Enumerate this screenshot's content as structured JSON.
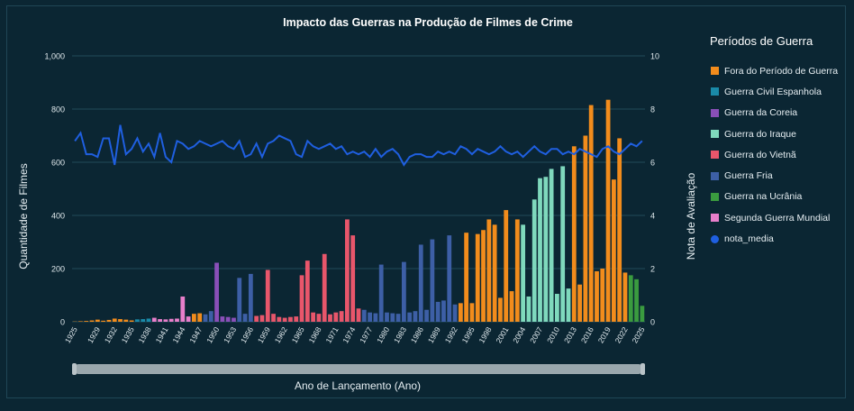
{
  "chart_data": {
    "type": "bar",
    "title": "Impacto das Guerras na Produção de Filmes de Crime",
    "xlabel": "Ano de Lançamento (Ano)",
    "ylabel": "Quantidade de Filmes",
    "y2label": "Nota de Avaliação",
    "ylim": [
      0,
      1000
    ],
    "y2lim": [
      0,
      10
    ],
    "yticks": [
      "0",
      "200",
      "400",
      "600",
      "800",
      "1,000"
    ],
    "y2ticks": [
      "0",
      "2",
      "4",
      "6",
      "8",
      "10"
    ],
    "xticks": [
      "1925",
      "1929",
      "1932",
      "1935",
      "1938",
      "1941",
      "1944",
      "1947",
      "1950",
      "1953",
      "1956",
      "1959",
      "1962",
      "1965",
      "1968",
      "1971",
      "1974",
      "1977",
      "1980",
      "1983",
      "1986",
      "1989",
      "1992",
      "1995",
      "1998",
      "2001",
      "2004",
      "2007",
      "2010",
      "2013",
      "2016",
      "2019",
      "2022",
      "2025"
    ],
    "grid": true,
    "legend_title": "Períodos de Guerra",
    "legend_position": "right",
    "categories": [
      "Fora do Período de Guerra",
      "Guerra Civil Espanhola",
      "Guerra da Coreia",
      "Guerra do Iraque",
      "Guerra do Vietnã",
      "Guerra Fria",
      "Guerra na Ucrânia",
      "Segunda Guerra Mundial"
    ],
    "colors": {
      "Fora do Período de Guerra": "#f28c1c",
      "Guerra Civil Espanhola": "#1a8aa8",
      "Guerra da Coreia": "#8a4fb8",
      "Guerra do Iraque": "#7fd9bd",
      "Guerra do Vietnã": "#e8566b",
      "Guerra Fria": "#3d5fa6",
      "Guerra na Ucrânia": "#3a9b3f",
      "Segunda Guerra Mundial": "#e87fcb",
      "nota_media": "#1f5fe0"
    },
    "line_series_name": "nota_media",
    "x": [
      1925,
      1926,
      1927,
      1928,
      1929,
      1930,
      1931,
      1932,
      1933,
      1934,
      1935,
      1936,
      1937,
      1938,
      1939,
      1940,
      1941,
      1942,
      1943,
      1944,
      1945,
      1946,
      1947,
      1948,
      1949,
      1950,
      1951,
      1952,
      1953,
      1954,
      1955,
      1956,
      1957,
      1958,
      1959,
      1960,
      1961,
      1962,
      1963,
      1964,
      1965,
      1966,
      1967,
      1968,
      1969,
      1970,
      1971,
      1972,
      1973,
      1974,
      1975,
      1976,
      1977,
      1978,
      1979,
      1980,
      1981,
      1982,
      1983,
      1984,
      1985,
      1986,
      1987,
      1988,
      1989,
      1990,
      1991,
      1992,
      1993,
      1994,
      1995,
      1996,
      1997,
      1998,
      1999,
      2000,
      2001,
      2002,
      2003,
      2004,
      2005,
      2006,
      2007,
      2008,
      2009,
      2010,
      2011,
      2012,
      2013,
      2014,
      2015,
      2016,
      2017,
      2018,
      2019,
      2020,
      2021,
      2022,
      2023,
      2024,
      2025
    ],
    "period": [
      "Fora do Período de Guerra",
      "Fora do Período de Guerra",
      "Fora do Período de Guerra",
      "Fora do Período de Guerra",
      "Fora do Período de Guerra",
      "Fora do Período de Guerra",
      "Fora do Período de Guerra",
      "Fora do Período de Guerra",
      "Fora do Período de Guerra",
      "Fora do Período de Guerra",
      "Fora do Período de Guerra",
      "Guerra Civil Espanhola",
      "Guerra Civil Espanhola",
      "Guerra Civil Espanhola",
      "Segunda Guerra Mundial",
      "Segunda Guerra Mundial",
      "Segunda Guerra Mundial",
      "Segunda Guerra Mundial",
      "Segunda Guerra Mundial",
      "Segunda Guerra Mundial",
      "Segunda Guerra Mundial",
      "Fora do Período de Guerra",
      "Fora do Período de Guerra",
      "Guerra Fria",
      "Guerra Fria",
      "Guerra da Coreia",
      "Guerra da Coreia",
      "Guerra da Coreia",
      "Guerra da Coreia",
      "Guerra Fria",
      "Guerra Fria",
      "Guerra Fria",
      "Guerra do Vietnã",
      "Guerra do Vietnã",
      "Guerra do Vietnã",
      "Guerra do Vietnã",
      "Guerra do Vietnã",
      "Guerra do Vietnã",
      "Guerra do Vietnã",
      "Guerra do Vietnã",
      "Guerra do Vietnã",
      "Guerra do Vietnã",
      "Guerra do Vietnã",
      "Guerra do Vietnã",
      "Guerra do Vietnã",
      "Guerra do Vietnã",
      "Guerra do Vietnã",
      "Guerra do Vietnã",
      "Guerra do Vietnã",
      "Guerra do Vietnã",
      "Guerra do Vietnã",
      "Guerra Fria",
      "Guerra Fria",
      "Guerra Fria",
      "Guerra Fria",
      "Guerra Fria",
      "Guerra Fria",
      "Guerra Fria",
      "Guerra Fria",
      "Guerra Fria",
      "Guerra Fria",
      "Guerra Fria",
      "Guerra Fria",
      "Guerra Fria",
      "Guerra Fria",
      "Guerra Fria",
      "Guerra Fria",
      "Guerra Fria",
      "Fora do Período de Guerra",
      "Fora do Período de Guerra",
      "Fora do Período de Guerra",
      "Fora do Período de Guerra",
      "Fora do Período de Guerra",
      "Fora do Período de Guerra",
      "Fora do Período de Guerra",
      "Fora do Período de Guerra",
      "Fora do Período de Guerra",
      "Fora do Período de Guerra",
      "Fora do Período de Guerra",
      "Guerra do Iraque",
      "Guerra do Iraque",
      "Guerra do Iraque",
      "Guerra do Iraque",
      "Guerra do Iraque",
      "Guerra do Iraque",
      "Guerra do Iraque",
      "Guerra do Iraque",
      "Guerra do Iraque",
      "Fora do Período de Guerra",
      "Fora do Período de Guerra",
      "Fora do Período de Guerra",
      "Fora do Período de Guerra",
      "Fora do Período de Guerra",
      "Fora do Período de Guerra",
      "Fora do Período de Guerra",
      "Fora do Período de Guerra",
      "Fora do Período de Guerra",
      "Fora do Período de Guerra",
      "Guerra na Ucrânia",
      "Guerra na Ucrânia",
      "Guerra na Ucrânia",
      "Guerra na Ucrânia"
    ],
    "values": [
      1,
      2,
      3,
      5,
      8,
      4,
      7,
      12,
      10,
      8,
      5,
      9,
      10,
      12,
      15,
      10,
      9,
      11,
      12,
      95,
      20,
      30,
      32,
      28,
      40,
      222,
      20,
      18,
      15,
      165,
      30,
      180,
      22,
      25,
      195,
      30,
      18,
      15,
      18,
      20,
      175,
      230,
      35,
      30,
      255,
      28,
      35,
      40,
      385,
      325,
      50,
      45,
      35,
      32,
      215,
      35,
      32,
      30,
      225,
      35,
      40,
      290,
      45,
      310,
      75,
      80,
      325,
      65,
      70,
      335,
      70,
      330,
      345,
      385,
      365,
      90,
      420,
      115,
      385,
      365,
      95,
      460,
      540,
      545,
      575,
      105,
      585,
      125,
      660,
      140,
      700,
      815,
      190,
      200,
      835,
      535,
      690,
      185,
      175,
      160,
      60
    ],
    "nota_media": [
      6.8,
      7.1,
      6.3,
      6.3,
      6.2,
      6.9,
      6.9,
      5.9,
      7.4,
      6.3,
      6.5,
      6.9,
      6.4,
      6.7,
      6.2,
      7.1,
      6.2,
      6.0,
      6.8,
      6.7,
      6.5,
      6.6,
      6.8,
      6.7,
      6.6,
      6.7,
      6.8,
      6.6,
      6.5,
      6.8,
      6.2,
      6.3,
      6.7,
      6.2,
      6.7,
      6.8,
      7.0,
      6.9,
      6.8,
      6.3,
      6.2,
      6.8,
      6.6,
      6.5,
      6.6,
      6.7,
      6.5,
      6.6,
      6.3,
      6.4,
      6.3,
      6.4,
      6.2,
      6.5,
      6.2,
      6.4,
      6.5,
      6.3,
      5.9,
      6.2,
      6.3,
      6.3,
      6.2,
      6.2,
      6.4,
      6.3,
      6.4,
      6.3,
      6.6,
      6.5,
      6.3,
      6.5,
      6.4,
      6.3,
      6.4,
      6.6,
      6.4,
      6.3,
      6.4,
      6.2,
      6.4,
      6.6,
      6.4,
      6.3,
      6.5,
      6.5,
      6.3,
      6.4,
      6.3,
      6.5,
      6.4,
      6.3,
      6.2,
      6.5,
      6.6,
      6.4,
      6.3,
      6.5,
      6.7,
      6.6,
      6.8
    ]
  }
}
